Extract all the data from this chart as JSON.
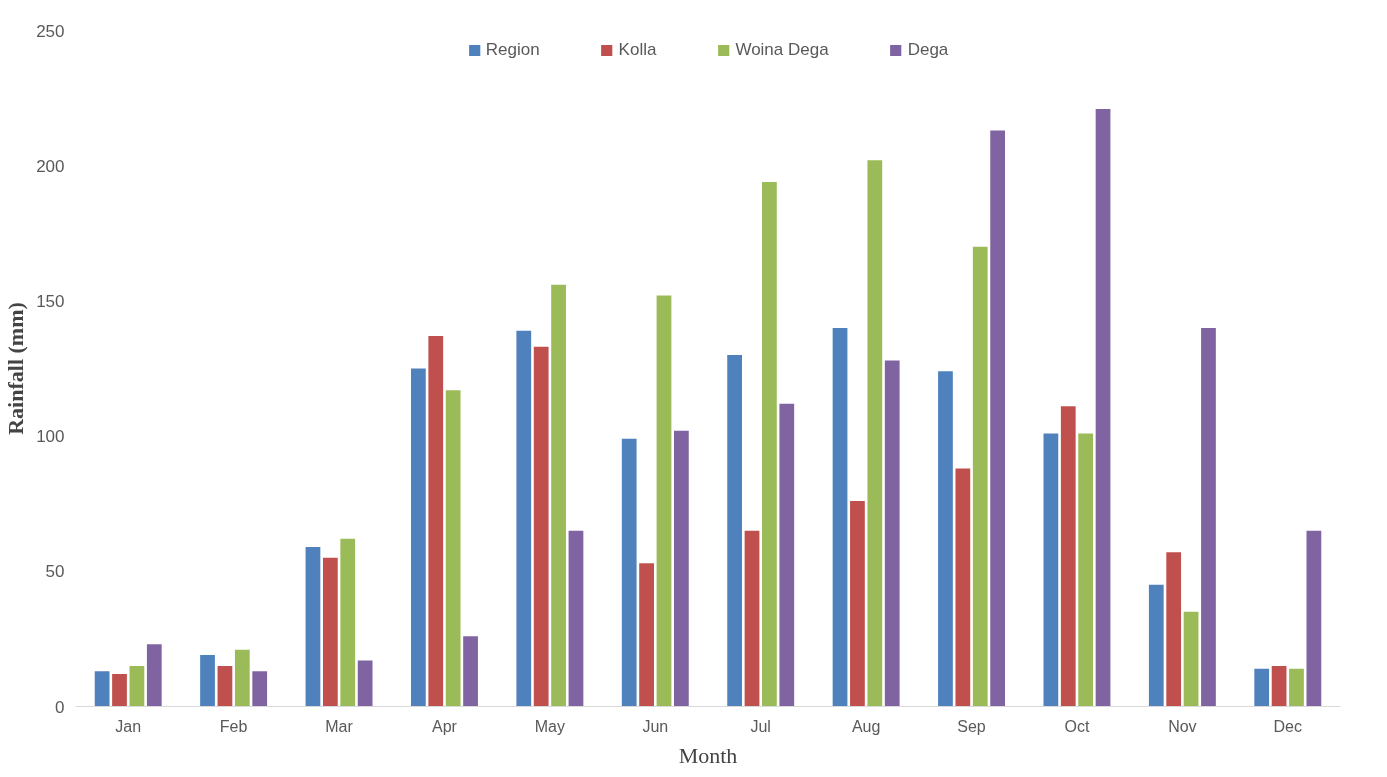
{
  "chart_data": {
    "type": "bar",
    "xlabel": "Month",
    "ylabel": "Rainfall (mm)",
    "categories": [
      "Jan",
      "Feb",
      "Mar",
      "Apr",
      "May",
      "Jun",
      "Jul",
      "Aug",
      "Sep",
      "Oct",
      "Nov",
      "Dec"
    ],
    "series": [
      {
        "name": "Region",
        "color": "#4f81bd",
        "values": [
          13,
          19,
          59,
          125,
          139,
          99,
          130,
          140,
          124,
          101,
          45,
          14
        ]
      },
      {
        "name": "Kolla",
        "color": "#c0504d",
        "values": [
          12,
          15,
          55,
          137,
          133,
          53,
          65,
          76,
          88,
          111,
          57,
          15
        ]
      },
      {
        "name": "Woina Dega",
        "color": "#9bbb59",
        "values": [
          15,
          21,
          62,
          117,
          156,
          152,
          194,
          202,
          170,
          101,
          35,
          14
        ]
      },
      {
        "name": "Dega",
        "color": "#8064a2",
        "values": [
          23,
          13,
          17,
          26,
          65,
          102,
          112,
          128,
          213,
          221,
          140,
          65
        ]
      }
    ],
    "ylim": [
      0,
      250
    ],
    "yticks": [
      0,
      50,
      100,
      150,
      200,
      250
    ],
    "grid": false,
    "legend": "top"
  }
}
